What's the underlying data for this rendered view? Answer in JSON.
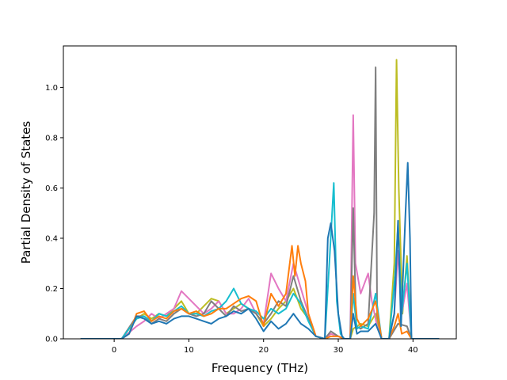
{
  "chart_data": {
    "type": "line",
    "title": "",
    "xlabel": "Frequency (THz)",
    "ylabel": "Partial Density of States",
    "xlim": [
      -6.8,
      45.8
    ],
    "ylim": [
      0.0,
      1.165
    ],
    "x_ticks": [
      0,
      10,
      20,
      30,
      40
    ],
    "y_ticks": [
      0.0,
      0.2,
      0.4,
      0.6,
      0.8,
      1.0
    ],
    "x_tick_labels": [
      "0",
      "10",
      "20",
      "30",
      "40"
    ],
    "y_tick_labels": [
      "0.0",
      "0.2",
      "0.4",
      "0.6",
      "0.8",
      "1.0"
    ],
    "grid": false,
    "legend": "none",
    "series": [
      {
        "color": "#bcbd22",
        "points": [
          [
            -4.5,
            0
          ],
          [
            1,
            0
          ],
          [
            3,
            0.08
          ],
          [
            4,
            0.1
          ],
          [
            5,
            0.08
          ],
          [
            6,
            0.1
          ],
          [
            7,
            0.09
          ],
          [
            8,
            0.12
          ],
          [
            9,
            0.15
          ],
          [
            10,
            0.1
          ],
          [
            11,
            0.1
          ],
          [
            12,
            0.13
          ],
          [
            13,
            0.16
          ],
          [
            14,
            0.15
          ],
          [
            15,
            0.1
          ],
          [
            16,
            0.12
          ],
          [
            17,
            0.14
          ],
          [
            18,
            0.12
          ],
          [
            19,
            0.1
          ],
          [
            20,
            0.05
          ],
          [
            21,
            0.08
          ],
          [
            22,
            0.12
          ],
          [
            23,
            0.15
          ],
          [
            24,
            0.2
          ],
          [
            25,
            0.12
          ],
          [
            26,
            0.08
          ],
          [
            27,
            0.01
          ],
          [
            28.2,
            0
          ],
          [
            29,
            0.02
          ],
          [
            30,
            0.01
          ],
          [
            30.8,
            0
          ],
          [
            31.6,
            0
          ],
          [
            32,
            0.04
          ],
          [
            33,
            0.06
          ],
          [
            34,
            0.05
          ],
          [
            35,
            0.1
          ],
          [
            35.8,
            0
          ],
          [
            36.8,
            0
          ],
          [
            37.5,
            0.3
          ],
          [
            37.8,
            1.11
          ],
          [
            38.1,
            0.6
          ],
          [
            38.6,
            0.1
          ],
          [
            39.2,
            0.33
          ],
          [
            39.8,
            0
          ],
          [
            43.5,
            0
          ]
        ]
      },
      {
        "color": "#e377c2",
        "points": [
          [
            -4.5,
            0
          ],
          [
            1,
            0
          ],
          [
            3,
            0.05
          ],
          [
            4,
            0.07
          ],
          [
            5,
            0.1
          ],
          [
            6,
            0.08
          ],
          [
            7,
            0.1
          ],
          [
            8,
            0.12
          ],
          [
            9,
            0.19
          ],
          [
            10,
            0.16
          ],
          [
            11,
            0.13
          ],
          [
            12,
            0.1
          ],
          [
            13,
            0.12
          ],
          [
            14,
            0.15
          ],
          [
            15,
            0.1
          ],
          [
            16,
            0.1
          ],
          [
            17,
            0.12
          ],
          [
            18,
            0.16
          ],
          [
            19,
            0.1
          ],
          [
            20,
            0.06
          ],
          [
            21,
            0.26
          ],
          [
            22,
            0.2
          ],
          [
            23,
            0.15
          ],
          [
            24,
            0.3
          ],
          [
            25,
            0.2
          ],
          [
            26,
            0.1
          ],
          [
            27,
            0.01
          ],
          [
            28.2,
            0
          ],
          [
            29,
            0.02
          ],
          [
            30,
            0.01
          ],
          [
            30.8,
            0
          ],
          [
            31.6,
            0
          ],
          [
            32,
            0.89
          ],
          [
            32.3,
            0.3
          ],
          [
            33,
            0.18
          ],
          [
            34,
            0.26
          ],
          [
            34.5,
            0.15
          ],
          [
            35.2,
            0.05
          ],
          [
            35.8,
            0
          ],
          [
            36.8,
            0
          ],
          [
            37.5,
            0.1
          ],
          [
            38,
            0.35
          ],
          [
            38.5,
            0.1
          ],
          [
            39.2,
            0.22
          ],
          [
            39.8,
            0
          ],
          [
            43.5,
            0
          ]
        ]
      },
      {
        "color": "#7f7f7f",
        "points": [
          [
            -4.5,
            0
          ],
          [
            1,
            0
          ],
          [
            3,
            0.09
          ],
          [
            4,
            0.09
          ],
          [
            5,
            0.06
          ],
          [
            6,
            0.08
          ],
          [
            7,
            0.07
          ],
          [
            8,
            0.1
          ],
          [
            9,
            0.12
          ],
          [
            10,
            0.1
          ],
          [
            11,
            0.09
          ],
          [
            12,
            0.1
          ],
          [
            13,
            0.15
          ],
          [
            14,
            0.12
          ],
          [
            15,
            0.09
          ],
          [
            16,
            0.13
          ],
          [
            17,
            0.11
          ],
          [
            18,
            0.12
          ],
          [
            19,
            0.1
          ],
          [
            20,
            0.06
          ],
          [
            21,
            0.1
          ],
          [
            22,
            0.15
          ],
          [
            23,
            0.13
          ],
          [
            24,
            0.25
          ],
          [
            25,
            0.15
          ],
          [
            26,
            0.08
          ],
          [
            27,
            0.01
          ],
          [
            28.2,
            0
          ],
          [
            29,
            0.03
          ],
          [
            30,
            0.01
          ],
          [
            30.8,
            0
          ],
          [
            31.6,
            0
          ],
          [
            32,
            0.52
          ],
          [
            32.4,
            0.05
          ],
          [
            33,
            0.04
          ],
          [
            34,
            0.06
          ],
          [
            34.8,
            0.5
          ],
          [
            35,
            1.08
          ],
          [
            35.2,
            0.1
          ],
          [
            35.8,
            0
          ],
          [
            36.8,
            0
          ],
          [
            38,
            0.06
          ],
          [
            39.2,
            0.05
          ],
          [
            39.8,
            0
          ],
          [
            43.5,
            0
          ]
        ]
      },
      {
        "color": "#17becf",
        "points": [
          [
            -4.5,
            0
          ],
          [
            1,
            0
          ],
          [
            3,
            0.08
          ],
          [
            4,
            0.09
          ],
          [
            5,
            0.07
          ],
          [
            6,
            0.1
          ],
          [
            7,
            0.09
          ],
          [
            8,
            0.11
          ],
          [
            9,
            0.13
          ],
          [
            10,
            0.1
          ],
          [
            11,
            0.1
          ],
          [
            12,
            0.09
          ],
          [
            13,
            0.11
          ],
          [
            14,
            0.12
          ],
          [
            15,
            0.15
          ],
          [
            16,
            0.2
          ],
          [
            17,
            0.14
          ],
          [
            18,
            0.12
          ],
          [
            19,
            0.11
          ],
          [
            20,
            0.08
          ],
          [
            21,
            0.12
          ],
          [
            22,
            0.1
          ],
          [
            23,
            0.12
          ],
          [
            24,
            0.18
          ],
          [
            25,
            0.14
          ],
          [
            26,
            0.07
          ],
          [
            27,
            0.01
          ],
          [
            28.2,
            0
          ],
          [
            28.8,
            0.3
          ],
          [
            29.4,
            0.62
          ],
          [
            29.8,
            0.15
          ],
          [
            30.3,
            0.02
          ],
          [
            30.8,
            0
          ],
          [
            31.6,
            0
          ],
          [
            32,
            0.18
          ],
          [
            32.5,
            0.04
          ],
          [
            33,
            0.05
          ],
          [
            34,
            0.04
          ],
          [
            35,
            0.18
          ],
          [
            35.8,
            0
          ],
          [
            36.8,
            0
          ],
          [
            37.6,
            0.25
          ],
          [
            38,
            0.45
          ],
          [
            38.5,
            0.1
          ],
          [
            39.2,
            0.3
          ],
          [
            39.8,
            0
          ],
          [
            43.5,
            0
          ]
        ]
      },
      {
        "color": "#ff7f0e",
        "points": [
          [
            -4.5,
            0
          ],
          [
            1,
            0
          ],
          [
            2,
            0.02
          ],
          [
            3,
            0.1
          ],
          [
            4,
            0.11
          ],
          [
            5,
            0.07
          ],
          [
            6,
            0.09
          ],
          [
            7,
            0.08
          ],
          [
            8,
            0.11
          ],
          [
            9,
            0.12
          ],
          [
            10,
            0.1
          ],
          [
            11,
            0.11
          ],
          [
            12,
            0.09
          ],
          [
            13,
            0.1
          ],
          [
            14,
            0.12
          ],
          [
            15,
            0.12
          ],
          [
            16,
            0.14
          ],
          [
            17,
            0.16
          ],
          [
            18,
            0.17
          ],
          [
            19,
            0.15
          ],
          [
            20,
            0.05
          ],
          [
            21,
            0.18
          ],
          [
            22,
            0.13
          ],
          [
            23,
            0.18
          ],
          [
            23.8,
            0.37
          ],
          [
            24.2,
            0.25
          ],
          [
            24.6,
            0.37
          ],
          [
            25,
            0.3
          ],
          [
            25.6,
            0.23
          ],
          [
            26,
            0.1
          ],
          [
            27,
            0.01
          ],
          [
            28.2,
            0
          ],
          [
            29,
            0.01
          ],
          [
            30,
            0.01
          ],
          [
            30.8,
            0
          ],
          [
            31.6,
            0
          ],
          [
            32,
            0.25
          ],
          [
            32.5,
            0.08
          ],
          [
            33,
            0.05
          ],
          [
            34,
            0.08
          ],
          [
            35,
            0.15
          ],
          [
            35.8,
            0
          ],
          [
            36.8,
            0
          ],
          [
            37.5,
            0.05
          ],
          [
            38,
            0.1
          ],
          [
            38.5,
            0.02
          ],
          [
            39.2,
            0.03
          ],
          [
            39.8,
            0
          ],
          [
            43.5,
            0
          ]
        ]
      },
      {
        "color": "#1f77b4",
        "points": [
          [
            -4.5,
            0
          ],
          [
            1,
            0
          ],
          [
            2,
            0.02
          ],
          [
            3,
            0.09
          ],
          [
            4,
            0.08
          ],
          [
            5,
            0.06
          ],
          [
            6,
            0.07
          ],
          [
            7,
            0.06
          ],
          [
            8,
            0.08
          ],
          [
            9,
            0.09
          ],
          [
            10,
            0.09
          ],
          [
            11,
            0.08
          ],
          [
            12,
            0.07
          ],
          [
            13,
            0.06
          ],
          [
            14,
            0.08
          ],
          [
            15,
            0.09
          ],
          [
            16,
            0.11
          ],
          [
            17,
            0.1
          ],
          [
            18,
            0.12
          ],
          [
            19,
            0.08
          ],
          [
            20,
            0.03
          ],
          [
            21,
            0.07
          ],
          [
            22,
            0.04
          ],
          [
            23,
            0.06
          ],
          [
            24,
            0.1
          ],
          [
            25,
            0.06
          ],
          [
            26,
            0.04
          ],
          [
            27,
            0.01
          ],
          [
            28.2,
            0
          ],
          [
            28.6,
            0.4
          ],
          [
            29,
            0.46
          ],
          [
            29.5,
            0.35
          ],
          [
            30,
            0.1
          ],
          [
            30.5,
            0.01
          ],
          [
            30.8,
            0
          ],
          [
            31.6,
            0
          ],
          [
            32,
            0.1
          ],
          [
            32.5,
            0.02
          ],
          [
            33,
            0.03
          ],
          [
            34,
            0.03
          ],
          [
            35,
            0.06
          ],
          [
            35.8,
            0
          ],
          [
            36.8,
            0
          ],
          [
            37.5,
            0.1
          ],
          [
            38,
            0.47
          ],
          [
            38.4,
            0.05
          ],
          [
            39,
            0.5
          ],
          [
            39.3,
            0.7
          ],
          [
            39.6,
            0.4
          ],
          [
            39.8,
            0
          ],
          [
            43.5,
            0
          ]
        ]
      }
    ]
  }
}
